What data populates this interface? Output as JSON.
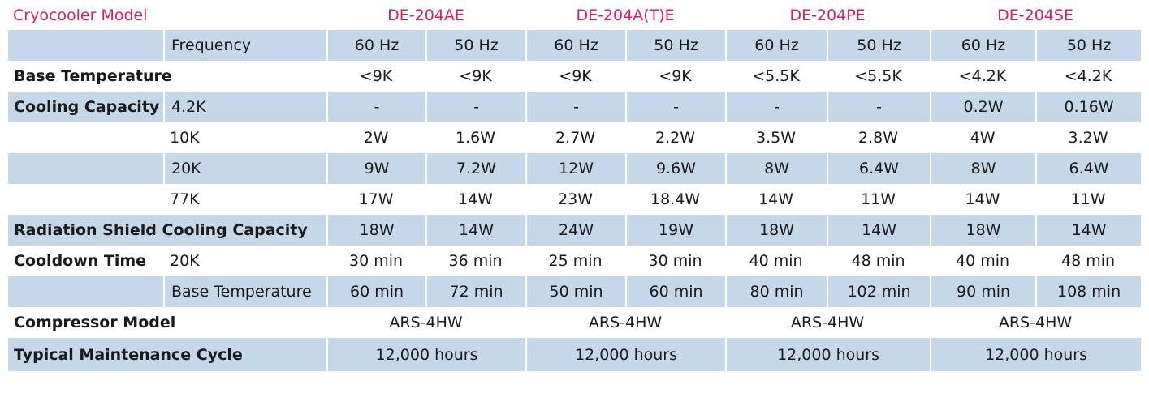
{
  "header": {
    "title": "Cryocooler Model",
    "models": [
      "DE-204AE",
      "DE-204A(T)E",
      "DE-204PE",
      "DE-204SE"
    ]
  },
  "frequency": {
    "label": "Frequency",
    "values": [
      "60 Hz",
      "50 Hz",
      "60 Hz",
      "50 Hz",
      "60 Hz",
      "50 Hz",
      "60 Hz",
      "50 Hz"
    ]
  },
  "base_temperature": {
    "label": "Base Temperature",
    "values": [
      "<9K",
      "<9K",
      "<9K",
      "<9K",
      "<5.5K",
      "<5.5K",
      "<4.2K",
      "<4.2K"
    ]
  },
  "cooling_capacity": {
    "label": "Cooling Capacity",
    "rows": [
      {
        "sub": "4.2K",
        "values": [
          "-",
          "-",
          "-",
          "-",
          "-",
          "-",
          "0.2W",
          "0.16W"
        ]
      },
      {
        "sub": "10K",
        "values": [
          "2W",
          "1.6W",
          "2.7W",
          "2.2W",
          "3.5W",
          "2.8W",
          "4W",
          "3.2W"
        ]
      },
      {
        "sub": "20K",
        "values": [
          "9W",
          "7.2W",
          "12W",
          "9.6W",
          "8W",
          "6.4W",
          "8W",
          "6.4W"
        ]
      },
      {
        "sub": "77K",
        "values": [
          "17W",
          "14W",
          "23W",
          "18.4W",
          "14W",
          "11W",
          "14W",
          "11W"
        ]
      }
    ]
  },
  "radiation_shield": {
    "label": "Radiation Shield Cooling Capacity",
    "values": [
      "18W",
      "14W",
      "24W",
      "19W",
      "18W",
      "14W",
      "18W",
      "14W"
    ]
  },
  "cooldown_time": {
    "label": "Cooldown Time",
    "rows": [
      {
        "sub": "20K",
        "values": [
          "30 min",
          "36 min",
          "25 min",
          "30 min",
          "40 min",
          "48 min",
          "40 min",
          "48 min"
        ]
      },
      {
        "sub": "Base Temperature",
        "values": [
          "60 min",
          "72 min",
          "50 min",
          "60 min",
          "80 min",
          "102 min",
          "90 min",
          "108 min"
        ]
      }
    ]
  },
  "compressor_model": {
    "label": "Compressor Model",
    "values": [
      "ARS-4HW",
      "ARS-4HW",
      "ARS-4HW",
      "ARS-4HW"
    ]
  },
  "maintenance_cycle": {
    "label": "Typical Maintenance Cycle",
    "values": [
      "12,000 hours",
      "12,000 hours",
      "12,000 hours",
      "12,000 hours"
    ]
  },
  "colors": {
    "header_text": "#d51c64",
    "row_shade": "#c5d8ea"
  }
}
